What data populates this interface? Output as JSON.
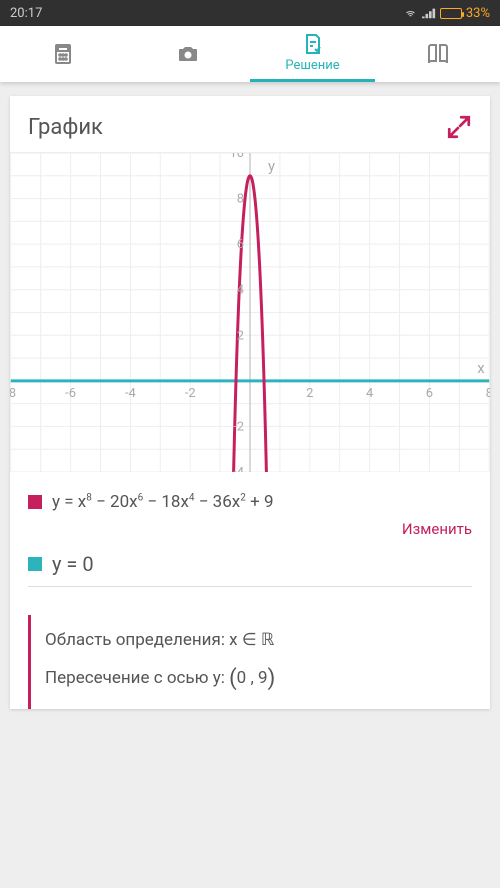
{
  "status_bar": {
    "time": "20:17",
    "battery_text": "33%"
  },
  "tabs": {
    "active_label": "Решение"
  },
  "card": {
    "title": "График",
    "change_label": "Изменить"
  },
  "chart": {
    "xlim": [
      -8,
      8
    ],
    "ylim": [
      -4,
      10
    ],
    "xticks": [
      -8,
      -6,
      -4,
      -2,
      2,
      4,
      6,
      8
    ],
    "yticks": [
      -4,
      -2,
      2,
      4,
      6,
      8,
      10
    ],
    "x_axis_label": "x",
    "y_axis_label": "y",
    "grid_color": "#eeeeee",
    "axis_color": "#cccccc",
    "tick_label_color": "#aaaaaa",
    "tick_fontsize": 13,
    "background_color": "#ffffff",
    "series": [
      {
        "type": "hline",
        "y": 0,
        "color": "#2db3bb",
        "width": 3
      },
      {
        "type": "poly",
        "coeffs": [
          9,
          0,
          -36,
          0,
          -18,
          0,
          -20,
          0,
          1
        ],
        "color": "#c51f5d",
        "width": 3
      }
    ]
  },
  "legend": {
    "curve_color": "#c51f5d",
    "curve_formula": "y = x⁸ − 20x⁶ − 18x⁴ − 36x² + 9",
    "line_color": "#2db3bb",
    "line_formula": "y = 0"
  },
  "info": {
    "domain_label": "Область определения:",
    "domain_value": "x ∈ ℝ",
    "yint_label": "Пересечение с осью y:",
    "yint_value": "0 , 9"
  }
}
